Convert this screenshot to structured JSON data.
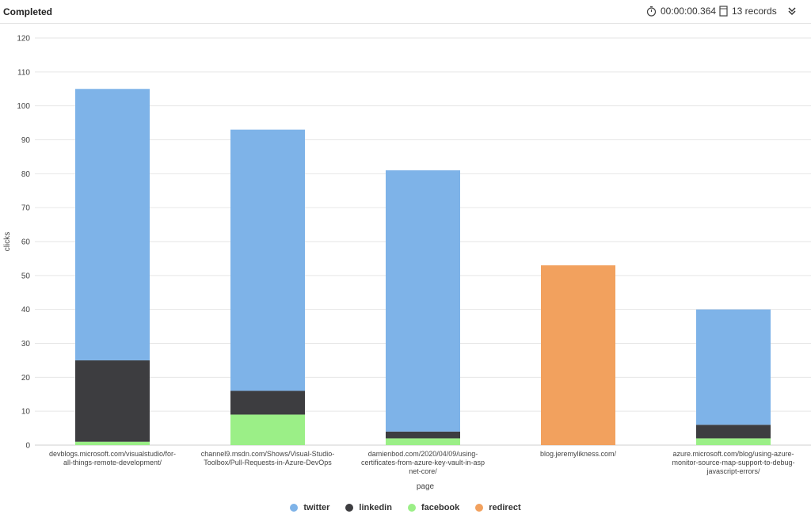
{
  "header": {
    "status": "Completed",
    "duration": "00:00:00.364",
    "records": "13 records"
  },
  "colors": {
    "twitter": "#7eb3e8",
    "linkedin": "#3d3d40",
    "facebook": "#9bef87",
    "redirect": "#f2a15e"
  },
  "chart_data": {
    "type": "bar",
    "stacked": true,
    "xlabel": "page",
    "ylabel": "clicks",
    "ylim": [
      0,
      120
    ],
    "yticks": [
      0,
      10,
      20,
      30,
      40,
      50,
      60,
      70,
      80,
      90,
      100,
      110,
      120
    ],
    "categories": [
      [
        "devblogs.microsoft.com/visualstudio/for-",
        "all-things-remote-development/"
      ],
      [
        "channel9.msdn.com/Shows/Visual-Studio-",
        "Toolbox/Pull-Requests-in-Azure-DevOps"
      ],
      [
        "damienbod.com/2020/04/09/using-",
        "certificates-from-azure-key-vault-in-asp",
        "net-core/"
      ],
      [
        "blog.jeremylikness.com/"
      ],
      [
        "azure.microsoft.com/blog/using-azure-",
        "monitor-source-map-support-to-debug-",
        "javascript-errors/"
      ]
    ],
    "series": [
      {
        "name": "facebook",
        "values": [
          1,
          9,
          2,
          0,
          2
        ]
      },
      {
        "name": "linkedin",
        "values": [
          24,
          7,
          2,
          0,
          4
        ]
      },
      {
        "name": "twitter",
        "values": [
          80,
          77,
          77,
          0,
          34
        ]
      },
      {
        "name": "redirect",
        "values": [
          0,
          0,
          0,
          53,
          0
        ]
      }
    ],
    "legend": [
      "twitter",
      "linkedin",
      "facebook",
      "redirect"
    ]
  }
}
